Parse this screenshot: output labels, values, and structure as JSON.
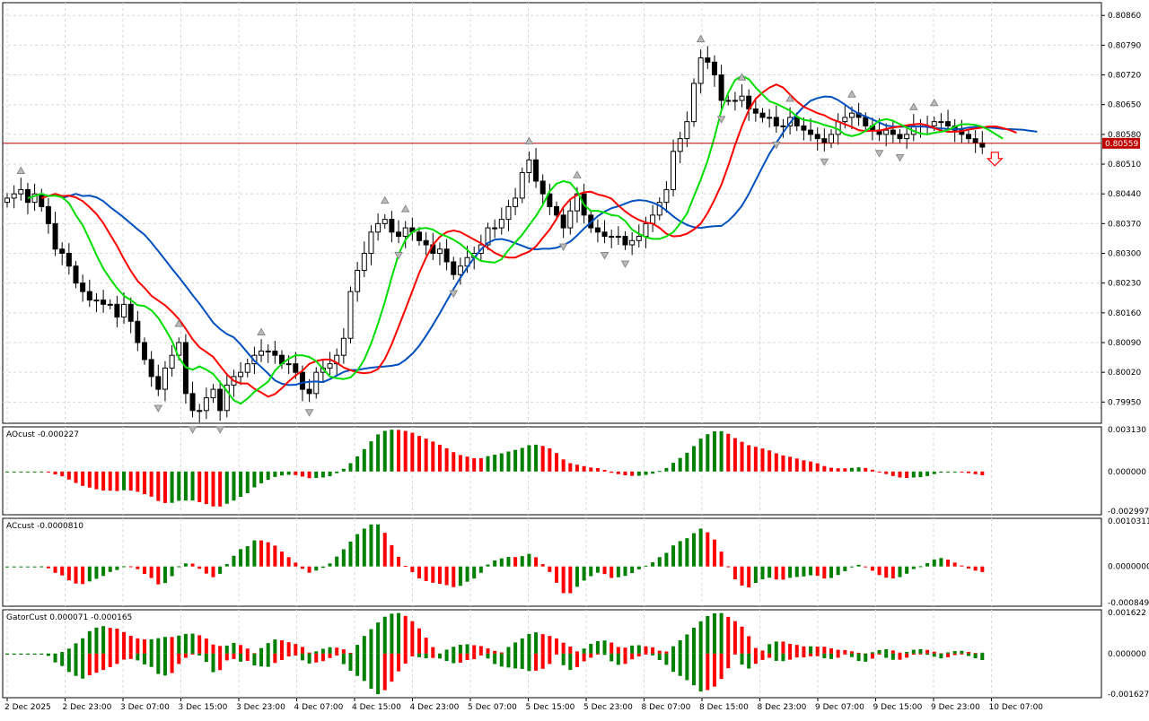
{
  "chart_data": [
    {
      "type": "candlestick",
      "pane": "main",
      "ylim": [
        0.799,
        0.8089
      ],
      "y_ticks": [
        "0.80860",
        "0.80790",
        "0.80720",
        "0.80650",
        "0.80580",
        "0.80510",
        "0.80440",
        "0.80370",
        "0.80300",
        "0.80230",
        "0.80160",
        "0.80090",
        "0.80020",
        "0.79950"
      ],
      "current_price_label": "0.80559",
      "current_price": 0.80559,
      "x_tick_labels": [
        "2 Dec 2025",
        "2 Dec 23:00",
        "3 Dec 07:00",
        "3 Dec 15:00",
        "3 Dec 23:00",
        "4 Dec 07:00",
        "4 Dec 15:00",
        "4 Dec 23:00",
        "5 Dec 07:00",
        "5 Dec 15:00",
        "5 Dec 23:00",
        "8 Dec 07:00",
        "8 Dec 15:00",
        "8 Dec 23:00",
        "9 Dec 07:00",
        "9 Dec 15:00",
        "9 Dec 23:00",
        "10 Dec 07:00"
      ],
      "close": [
        0.8043,
        0.8044,
        0.8045,
        0.8042,
        0.8044,
        0.8041,
        0.8037,
        0.8031,
        0.803,
        0.8027,
        0.8023,
        0.8021,
        0.8019,
        0.8019,
        0.8018,
        0.8018,
        0.8015,
        0.8018,
        0.8014,
        0.8009,
        0.8005,
        0.8001,
        0.7998,
        0.8003,
        0.8006,
        0.8009,
        0.7997,
        0.7993,
        0.7993,
        0.7996,
        0.7998,
        0.7993,
        0.7999,
        0.8001,
        0.8002,
        0.8004,
        0.8006,
        0.8007,
        0.8007,
        0.8006,
        0.8004,
        0.8004,
        0.8002,
        0.7998,
        0.7997,
        0.8002,
        0.8003,
        0.8004,
        0.8006,
        0.801,
        0.8021,
        0.8026,
        0.803,
        0.8035,
        0.8037,
        0.8038,
        0.8035,
        0.8034,
        0.8036,
        0.8035,
        0.8033,
        0.8032,
        0.803,
        0.8031,
        0.8028,
        0.8025,
        0.8027,
        0.8029,
        0.803,
        0.8032,
        0.8036,
        0.8036,
        0.8038,
        0.8041,
        0.8043,
        0.8049,
        0.8052,
        0.8047,
        0.8044,
        0.8041,
        0.8039,
        0.8036,
        0.804,
        0.8044,
        0.8039,
        0.8036,
        0.8035,
        0.8034,
        0.8034,
        0.8034,
        0.8032,
        0.8033,
        0.8034,
        0.8037,
        0.8039,
        0.8042,
        0.8045,
        0.8054,
        0.8057,
        0.8061,
        0.807,
        0.8076,
        0.8075,
        0.8072,
        0.8066,
        0.8066,
        0.8066,
        0.8067,
        0.8064,
        0.8063,
        0.8062,
        0.8062,
        0.806,
        0.806,
        0.8062,
        0.806,
        0.8059,
        0.8058,
        0.8057,
        0.8056,
        0.8058,
        0.8061,
        0.8062,
        0.8063,
        0.8062,
        0.806,
        0.8059,
        0.8058,
        0.8059,
        0.8058,
        0.8057,
        0.8058,
        0.806,
        0.806,
        0.806,
        0.8061,
        0.8061,
        0.806,
        0.8059,
        0.8058,
        0.8057,
        0.8056,
        0.8055
      ],
      "series": [
        {
          "name": "",
          "color": "#00dd00",
          "role": "lips"
        },
        {
          "name": "",
          "color": "#ff0000",
          "role": "teeth"
        },
        {
          "name": "",
          "color": "#0050c0",
          "role": "jaw"
        }
      ],
      "signal_arrow": "down",
      "grid": true
    },
    {
      "type": "histogram",
      "pane": "ao",
      "title": "AOcust -0.000227",
      "y_ticks": [
        "0.003130",
        "0.000000",
        "-0.002997"
      ],
      "ylim": [
        -0.003,
        0.0031
      ],
      "colors": {
        "up": "#008000",
        "down": "#ff0000"
      }
    },
    {
      "type": "histogram",
      "pane": "ac",
      "title": "ACcust -0.0000810",
      "y_ticks": [
        "0.00103110",
        "0.0000000",
        "-0.0008498"
      ],
      "ylim": [
        -0.00085,
        0.00103
      ],
      "colors": {
        "up": "#008000",
        "down": "#ff0000"
      }
    },
    {
      "type": "histogram",
      "pane": "gator",
      "title": "GatorCust 0.000071 -0.000165",
      "y_ticks": [
        "0.001622",
        "0.000000",
        "-0.001627"
      ],
      "ylim": [
        -0.00163,
        0.00162
      ],
      "colors": {
        "up": "#008000",
        "down": "#ff0000"
      }
    }
  ]
}
